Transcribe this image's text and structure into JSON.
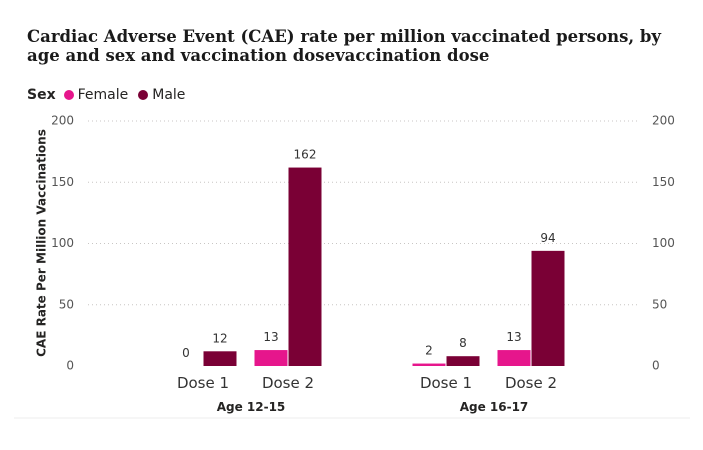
{
  "title": "Cardiac Adverse Event (CAE) rate per million vaccinated persons, by age and sex and vaccination dosevaccination dose",
  "legend": {
    "title": "Sex",
    "items": [
      {
        "name": "Female",
        "color": "#E6168C"
      },
      {
        "name": "Male",
        "color": "#7A0035"
      }
    ]
  },
  "chart_data": {
    "type": "bar",
    "ylabel": "CAE Rate Per Million Vaccinations",
    "ylim": [
      0,
      200
    ],
    "yticks": [
      0,
      50,
      100,
      150,
      200
    ],
    "grid": true,
    "legend_position": "top-left",
    "groups": [
      {
        "label": "Age 12-15",
        "categories": [
          "Dose 1",
          "Dose 2"
        ]
      },
      {
        "label": "Age 16-17",
        "categories": [
          "Dose 1",
          "Dose 2"
        ]
      }
    ],
    "series": [
      {
        "name": "Female",
        "color": "#E6168C",
        "values": [
          0,
          13,
          2,
          13
        ]
      },
      {
        "name": "Male",
        "color": "#7A0035",
        "values": [
          12,
          162,
          8,
          94
        ]
      }
    ]
  }
}
